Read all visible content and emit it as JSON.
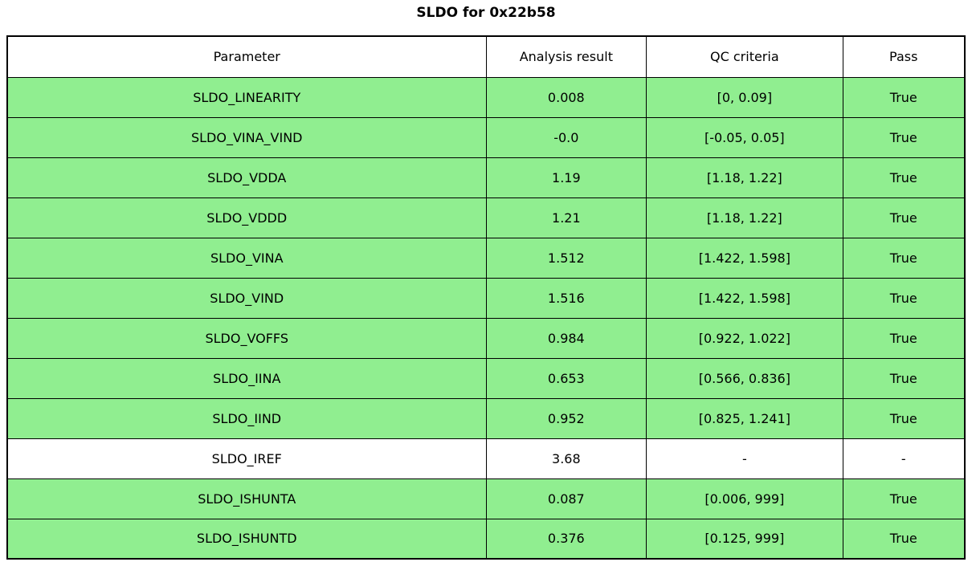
{
  "title": "SLDO for 0x22b58",
  "colors": {
    "pass_green": "#90EE90",
    "neutral_white": "#FFFFFF",
    "border_black": "#000000"
  },
  "table": {
    "headers": [
      "Parameter",
      "Analysis result",
      "QC criteria",
      "Pass"
    ],
    "rows": [
      {
        "parameter": "SLDO_LINEARITY",
        "analysis_result": "0.008",
        "qc_criteria": "[0, 0.09]",
        "pass": "True",
        "highlight": true
      },
      {
        "parameter": "SLDO_VINA_VIND",
        "analysis_result": "-0.0",
        "qc_criteria": "[-0.05, 0.05]",
        "pass": "True",
        "highlight": true
      },
      {
        "parameter": "SLDO_VDDA",
        "analysis_result": "1.19",
        "qc_criteria": "[1.18, 1.22]",
        "pass": "True",
        "highlight": true
      },
      {
        "parameter": "SLDO_VDDD",
        "analysis_result": "1.21",
        "qc_criteria": "[1.18, 1.22]",
        "pass": "True",
        "highlight": true
      },
      {
        "parameter": "SLDO_VINA",
        "analysis_result": "1.512",
        "qc_criteria": "[1.422, 1.598]",
        "pass": "True",
        "highlight": true
      },
      {
        "parameter": "SLDO_VIND",
        "analysis_result": "1.516",
        "qc_criteria": "[1.422, 1.598]",
        "pass": "True",
        "highlight": true
      },
      {
        "parameter": "SLDO_VOFFS",
        "analysis_result": "0.984",
        "qc_criteria": "[0.922, 1.022]",
        "pass": "True",
        "highlight": true
      },
      {
        "parameter": "SLDO_IINA",
        "analysis_result": "0.653",
        "qc_criteria": "[0.566, 0.836]",
        "pass": "True",
        "highlight": true
      },
      {
        "parameter": "SLDO_IIND",
        "analysis_result": "0.952",
        "qc_criteria": "[0.825, 1.241]",
        "pass": "True",
        "highlight": true
      },
      {
        "parameter": "SLDO_IREF",
        "analysis_result": "3.68",
        "qc_criteria": "-",
        "pass": "-",
        "highlight": false
      },
      {
        "parameter": "SLDO_ISHUNTA",
        "analysis_result": "0.087",
        "qc_criteria": "[0.006, 999]",
        "pass": "True",
        "highlight": true
      },
      {
        "parameter": "SLDO_ISHUNTD",
        "analysis_result": "0.376",
        "qc_criteria": "[0.125, 999]",
        "pass": "True",
        "highlight": true
      }
    ]
  },
  "chart_data": {
    "type": "table",
    "title": "SLDO for 0x22b58",
    "columns": [
      "Parameter",
      "Analysis result",
      "QC criteria",
      "Pass"
    ],
    "rows": [
      [
        "SLDO_LINEARITY",
        0.008,
        "[0, 0.09]",
        "True"
      ],
      [
        "SLDO_VINA_VIND",
        -0.0,
        "[-0.05, 0.05]",
        "True"
      ],
      [
        "SLDO_VDDA",
        1.19,
        "[1.18, 1.22]",
        "True"
      ],
      [
        "SLDO_VDDD",
        1.21,
        "[1.18, 1.22]",
        "True"
      ],
      [
        "SLDO_VINA",
        1.512,
        "[1.422, 1.598]",
        "True"
      ],
      [
        "SLDO_VIND",
        1.516,
        "[1.422, 1.598]",
        "True"
      ],
      [
        "SLDO_VOFFS",
        0.984,
        "[0.922, 1.022]",
        "True"
      ],
      [
        "SLDO_IINA",
        0.653,
        "[0.566, 0.836]",
        "True"
      ],
      [
        "SLDO_IIND",
        0.952,
        "[0.825, 1.241]",
        "True"
      ],
      [
        "SLDO_IREF",
        3.68,
        "-",
        "-"
      ],
      [
        "SLDO_ISHUNTA",
        0.087,
        "[0.006, 999]",
        "True"
      ],
      [
        "SLDO_ISHUNTD",
        0.376,
        "[0.125, 999]",
        "True"
      ]
    ],
    "layout_hints": {
      "row_fill_pass": "#90EE90",
      "row_fill_neutral": "#FFFFFF",
      "header_fill": "#FFFFFF",
      "grid": true
    }
  }
}
